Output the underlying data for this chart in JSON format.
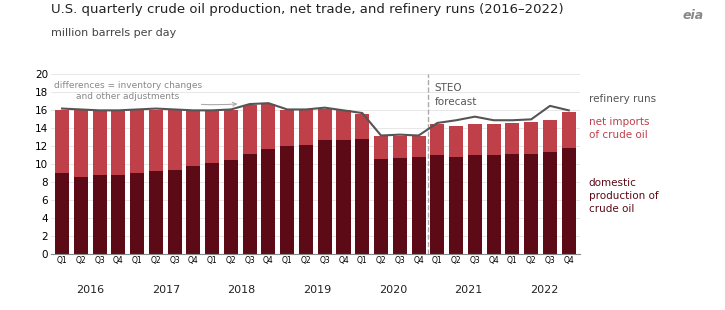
{
  "title": "U.S. quarterly crude oil production, net trade, and refinery runs (2016–2022)",
  "ylabel": "million barrels per day",
  "quarters": [
    "Q1",
    "Q2",
    "Q3",
    "Q4",
    "Q1",
    "Q2",
    "Q3",
    "Q4",
    "Q1",
    "Q2",
    "Q3",
    "Q4",
    "Q1",
    "Q2",
    "Q3",
    "Q4",
    "Q1",
    "Q2",
    "Q3",
    "Q4",
    "Q1",
    "Q2",
    "Q3",
    "Q4",
    "Q1",
    "Q2",
    "Q3",
    "Q4"
  ],
  "years": [
    "2016",
    "2017",
    "2018",
    "2019",
    "2020",
    "2021",
    "2022"
  ],
  "domestic_production": [
    9.0,
    8.6,
    8.8,
    8.8,
    9.0,
    9.2,
    9.4,
    9.8,
    10.2,
    10.5,
    11.1,
    11.7,
    12.0,
    12.2,
    12.7,
    12.7,
    12.8,
    10.6,
    10.7,
    10.8,
    11.0,
    10.8,
    11.0,
    11.0,
    11.1,
    11.2,
    11.4,
    11.8
  ],
  "net_imports": [
    7.0,
    7.4,
    7.2,
    7.2,
    7.0,
    6.8,
    6.6,
    6.2,
    5.8,
    5.5,
    5.5,
    5.0,
    4.0,
    4.0,
    3.5,
    3.3,
    2.8,
    2.5,
    2.5,
    2.3,
    3.5,
    3.5,
    3.5,
    3.5,
    3.5,
    3.5,
    3.5,
    4.0
  ],
  "refinery_runs": [
    16.2,
    16.1,
    16.0,
    16.0,
    16.1,
    16.2,
    16.1,
    16.0,
    16.0,
    16.1,
    16.7,
    16.8,
    16.1,
    16.1,
    16.3,
    16.0,
    15.7,
    13.2,
    13.3,
    13.2,
    14.6,
    14.9,
    15.3,
    14.9,
    14.9,
    15.0,
    16.5,
    16.0
  ],
  "color_domestic": "#5c0a16",
  "color_imports": "#c0404a",
  "color_refinery": "#555555",
  "steo_forecast_after_index": 20,
  "ylim": [
    0,
    20
  ],
  "yticks": [
    0,
    2,
    4,
    6,
    8,
    10,
    12,
    14,
    16,
    18,
    20
  ],
  "annotation_text": "differences = inventory changes\nand other adjustments",
  "steo_text": "STEO\nforecast",
  "legend_refinery": "refinery runs",
  "legend_imports": "net imports\nof crude oil",
  "legend_domestic": "domestic\nproduction of\ncrude oil",
  "year_positions": [
    1.5,
    5.5,
    9.5,
    13.5,
    17.5,
    21.5,
    25.5
  ],
  "years_list": [
    "2016",
    "2017",
    "2018",
    "2019",
    "2020",
    "2021",
    "2022"
  ]
}
